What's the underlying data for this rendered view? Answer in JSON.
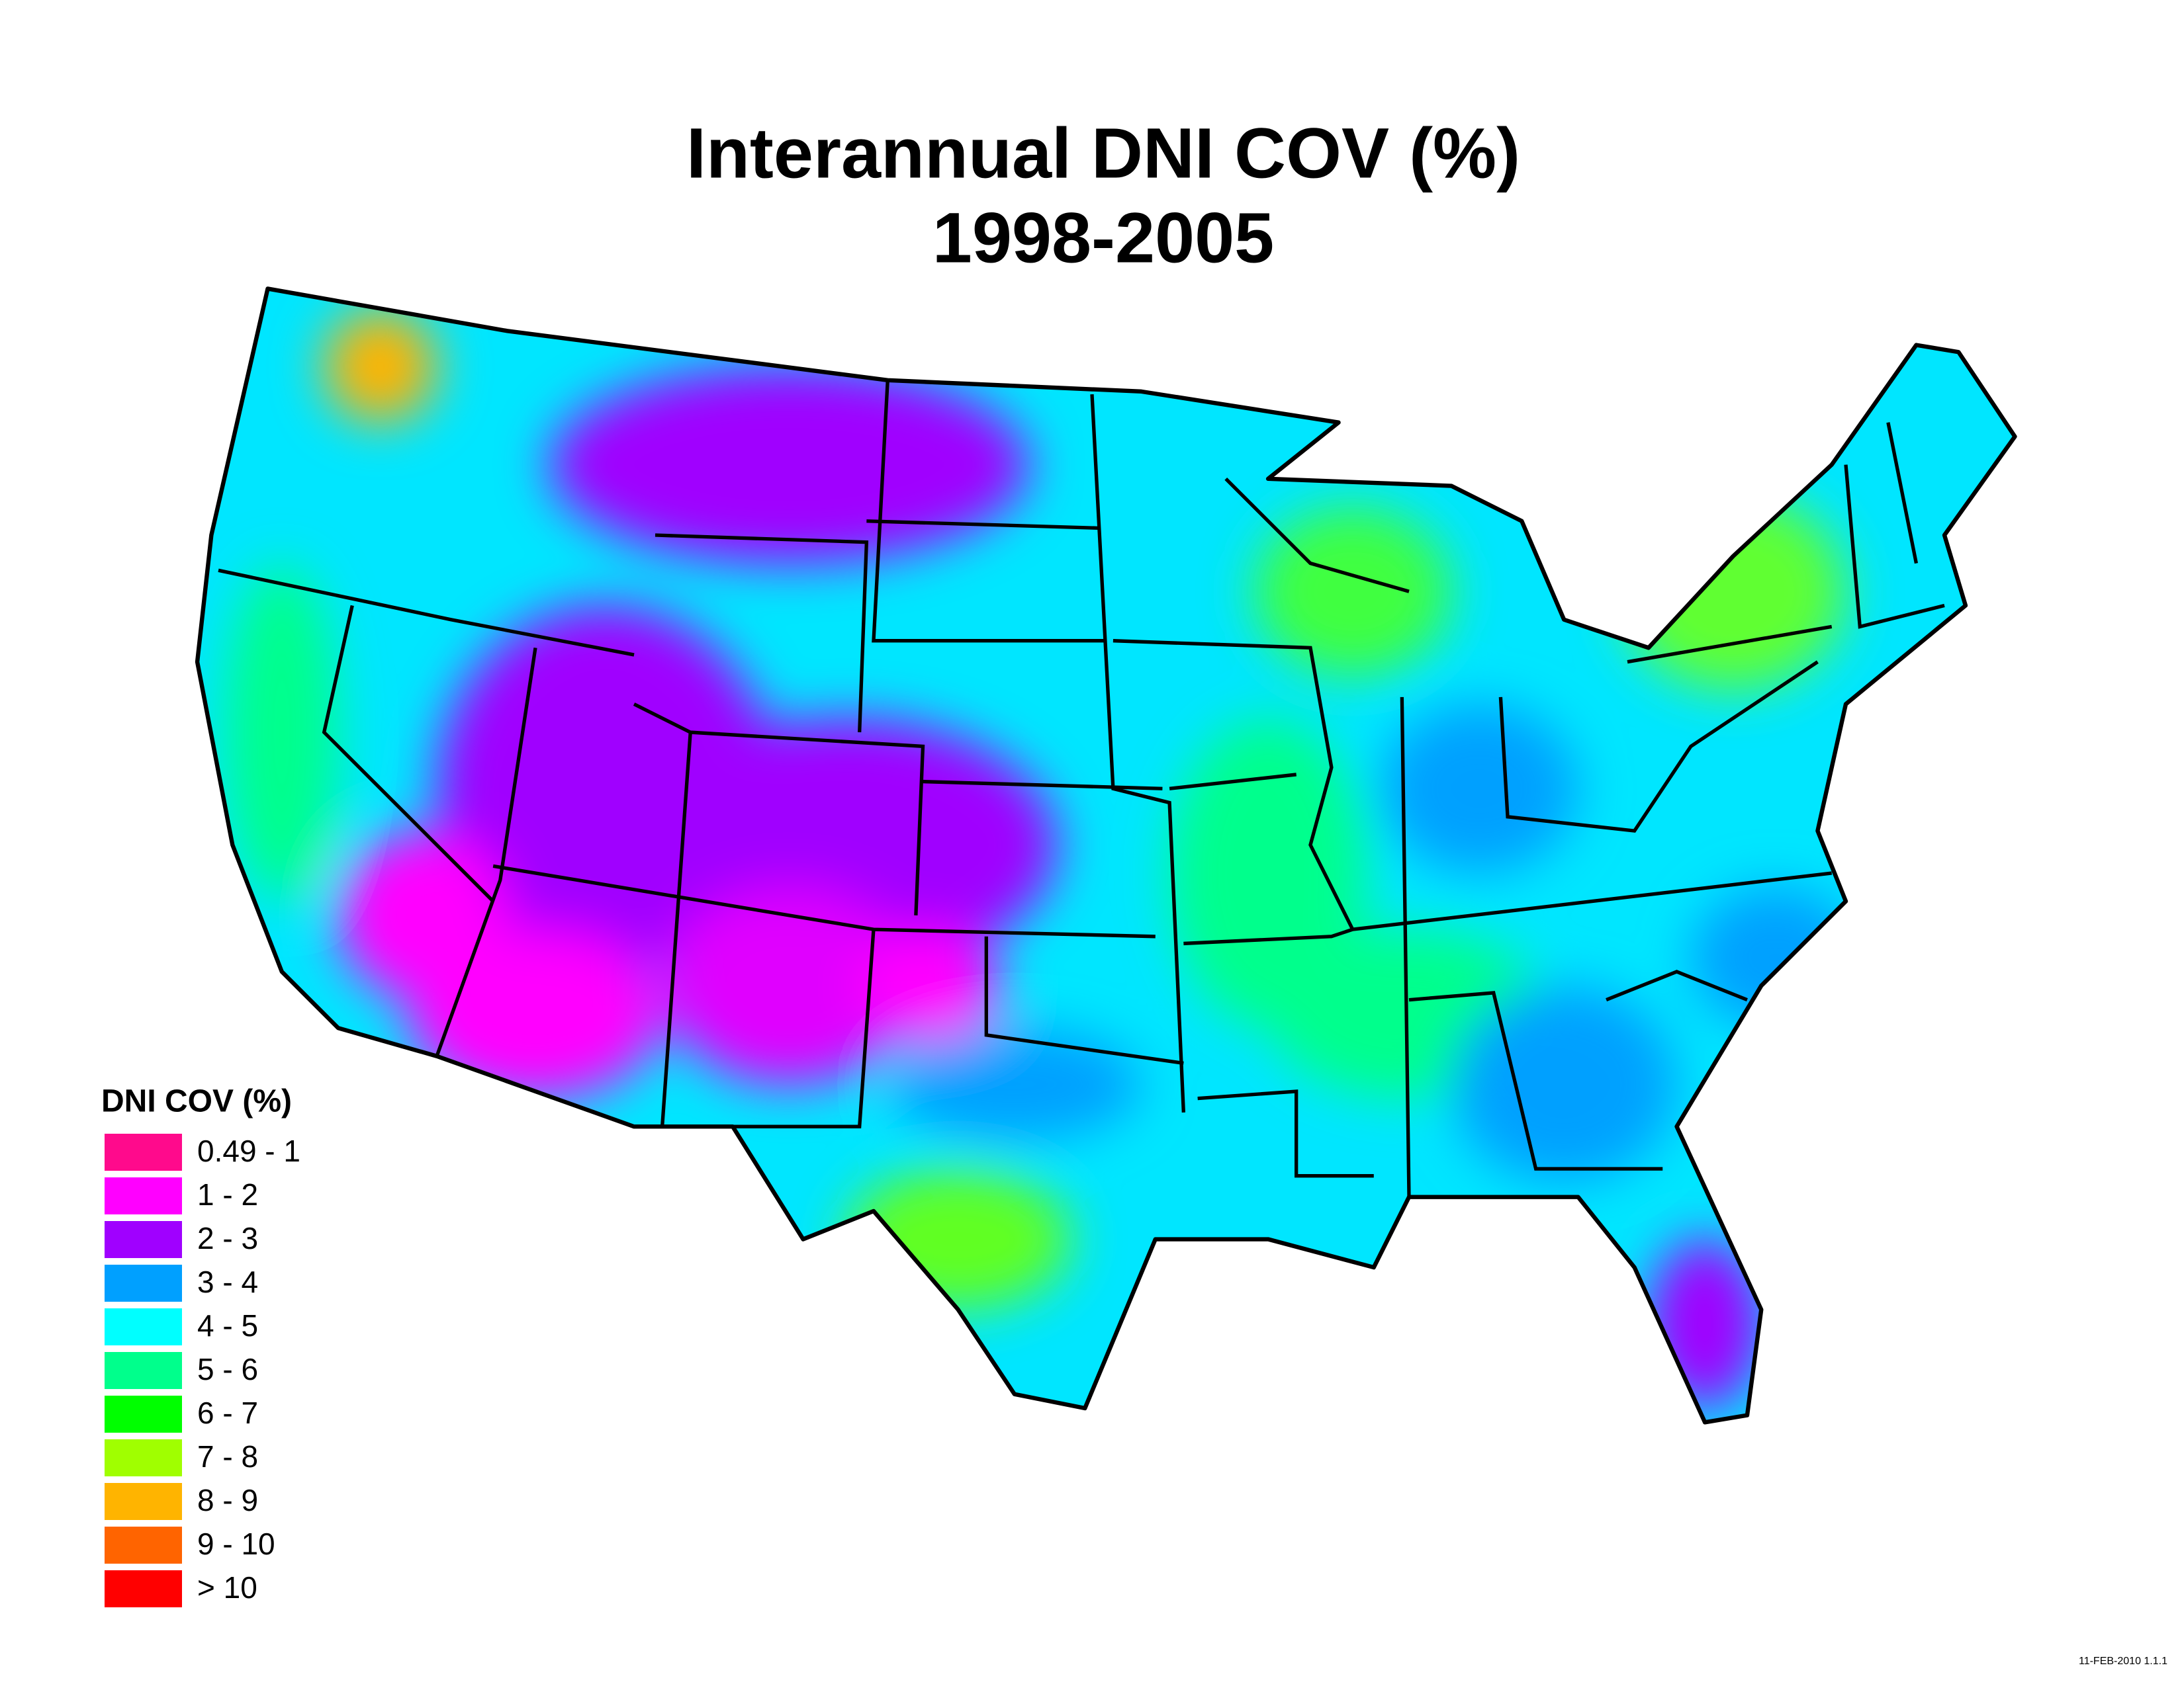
{
  "title": {
    "line1": "Interannual DNI COV (%)",
    "line2": "1998-2005"
  },
  "legend": {
    "title": "DNI COV (%)",
    "items": [
      {
        "label": "0.49 - 1",
        "color": "#ff0a8c"
      },
      {
        "label": "1 - 2",
        "color": "#ff00ff"
      },
      {
        "label": "2 - 3",
        "color": "#a000ff"
      },
      {
        "label": "3 - 4",
        "color": "#00a0ff"
      },
      {
        "label": "4 - 5",
        "color": "#00ffff"
      },
      {
        "label": "5 - 6",
        "color": "#00ff8c"
      },
      {
        "label": "6 - 7",
        "color": "#00ff00"
      },
      {
        "label": "7 - 8",
        "color": "#a0ff00"
      },
      {
        "label": "8 - 9",
        "color": "#ffb400"
      },
      {
        "label": "9 - 10",
        "color": "#ff6400"
      },
      {
        "label": "> 10",
        "color": "#ff0000"
      }
    ]
  },
  "footer": {
    "stamp": "11-FEB-2010 1.1.1"
  }
}
